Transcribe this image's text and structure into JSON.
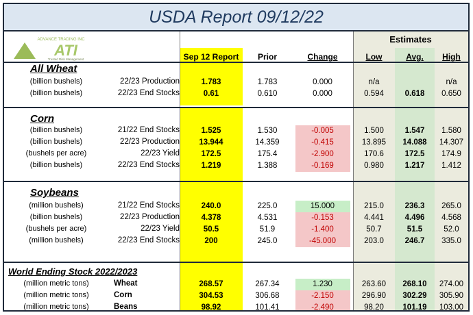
{
  "title": "USDA Report 09/12/22",
  "logo": {
    "top_text": "ADVANCE TRADING INC",
    "letters": "ATI",
    "tagline": "Trusted Risk Management"
  },
  "headers": {
    "report": "Sep 12 Report",
    "prior": "Prior",
    "change": "Change",
    "estimates": "Estimates",
    "low": "Low",
    "avg": "Avg.",
    "high": "High"
  },
  "sections": [
    {
      "name": "All Wheat",
      "rows": [
        {
          "unit": "(billion bushels)",
          "item": "22/23 Production",
          "report": "1.783",
          "prior": "1.783",
          "change": "0.000",
          "low": "n/a",
          "avg": "",
          "high": "n/a"
        },
        {
          "unit": "(billion bushels)",
          "item": "22/23 End Stocks",
          "report": "0.61",
          "prior": "0.610",
          "change": "0.000",
          "low": "0.594",
          "avg": "0.618",
          "high": "0.650"
        }
      ]
    },
    {
      "name": "Corn",
      "rows": [
        {
          "unit": "(billion bushels)",
          "item": "21/22 End Stocks",
          "report": "1.525",
          "prior": "1.530",
          "change": "-0.005",
          "low": "1.500",
          "avg": "1.547",
          "high": "1.580"
        },
        {
          "unit": "(billion bushels)",
          "item": "22/23 Production",
          "report": "13.944",
          "prior": "14.359",
          "change": "-0.415",
          "low": "13.895",
          "avg": "14.088",
          "high": "14.307"
        },
        {
          "unit": "(bushels per acre)",
          "item": "22/23 Yield",
          "report": "172.5",
          "prior": "175.4",
          "change": "-2.900",
          "low": "170.6",
          "avg": "172.5",
          "high": "174.9"
        },
        {
          "unit": "(billion bushels)",
          "item": "22/23 End Stocks",
          "report": "1.219",
          "prior": "1.388",
          "change": "-0.169",
          "low": "0.980",
          "avg": "1.217",
          "high": "1.412"
        }
      ]
    },
    {
      "name": "Soybeans",
      "rows": [
        {
          "unit": "(million bushels)",
          "item": "21/22 End Stocks",
          "report": "240.0",
          "prior": "225.0",
          "change": "15.000",
          "low": "215.0",
          "avg": "236.3",
          "high": "265.0"
        },
        {
          "unit": "(billion bushels)",
          "item": "22/23 Production",
          "report": "4.378",
          "prior": "4.531",
          "change": "-0.153",
          "low": "4.441",
          "avg": "4.496",
          "high": "4.568"
        },
        {
          "unit": "(bushels per acre)",
          "item": "22/23 Yield",
          "report": "50.5",
          "prior": "51.9",
          "change": "-1.400",
          "low": "50.7",
          "avg": "51.5",
          "high": "52.0"
        },
        {
          "unit": "(million bushels)",
          "item": "22/23 End Stocks",
          "report": "200",
          "prior": "245.0",
          "change": "-45.000",
          "low": "203.0",
          "avg": "246.7",
          "high": "335.0"
        }
      ]
    },
    {
      "name": "World Ending Stock 2022/2023",
      "rows": [
        {
          "unit": "(million metric tons)",
          "item": "Wheat",
          "report": "268.57",
          "prior": "267.34",
          "change": "1.230",
          "low": "263.60",
          "avg": "268.10",
          "high": "274.00"
        },
        {
          "unit": "(million metric tons)",
          "item": "Corn",
          "report": "304.53",
          "prior": "306.68",
          "change": "-2.150",
          "low": "296.90",
          "avg": "302.29",
          "high": "305.90"
        },
        {
          "unit": "(million metric tons)",
          "item": "Beans",
          "report": "98.92",
          "prior": "101.41",
          "change": "-2.490",
          "low": "98.20",
          "avg": "101.19",
          "high": "103.00"
        }
      ]
    }
  ],
  "colors": {
    "highlight": "#ffff00",
    "negative_fill": "#f4c7c8",
    "positive_fill": "#c7eec7",
    "negative_text": "#c00000",
    "estimates_fill": "#ebebde",
    "avg_fill": "#d5e8cf",
    "title_fill": "#dce6f1"
  }
}
